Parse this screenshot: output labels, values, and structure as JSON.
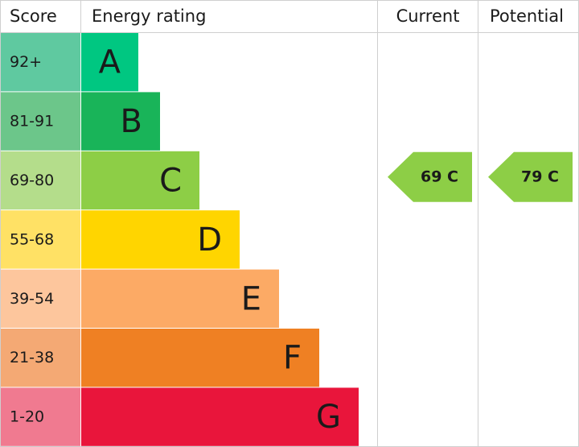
{
  "header": {
    "score": "Score",
    "rating": "Energy rating",
    "current": "Current",
    "potential": "Potential"
  },
  "bands": [
    {
      "score": "92+",
      "letter": "A",
      "score_color": "#5fc9a0",
      "color": "#00c781"
    },
    {
      "score": "81-91",
      "letter": "B",
      "score_color": "#6cc68a",
      "color": "#19b459"
    },
    {
      "score": "69-80",
      "letter": "C",
      "score_color": "#b4dd8b",
      "color": "#8dce46"
    },
    {
      "score": "55-68",
      "letter": "D",
      "score_color": "#ffe165",
      "color": "#ffd500"
    },
    {
      "score": "39-54",
      "letter": "E",
      "score_color": "#fdc69d",
      "color": "#fcaa65"
    },
    {
      "score": "21-38",
      "letter": "F",
      "score_color": "#f4a974",
      "color": "#ef8023"
    },
    {
      "score": "1-20",
      "letter": "G",
      "score_color": "#f07a90",
      "color": "#e9153b"
    }
  ],
  "current": {
    "label": "69 C",
    "band": 2,
    "color": "#8dce46"
  },
  "potential": {
    "label": "79 C",
    "band": 2,
    "color": "#8dce46"
  }
}
